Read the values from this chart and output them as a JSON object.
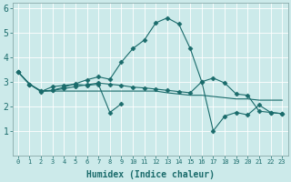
{
  "xlabel": "Humidex (Indice chaleur)",
  "background_color": "#cceaea",
  "line_color": "#1a6b6b",
  "xlim": [
    -0.5,
    23.5
  ],
  "ylim": [
    0,
    6.2
  ],
  "yticks": [
    1,
    2,
    3,
    4,
    5,
    6
  ],
  "xtick_labels": [
    "0",
    "1",
    "2",
    "3",
    "4",
    "5",
    "6",
    "7",
    "8",
    "9",
    "10",
    "11",
    "12",
    "13",
    "14",
    "15",
    "16",
    "17",
    "18",
    "19",
    "20",
    "21",
    "22",
    "23"
  ],
  "lines": [
    {
      "x": [
        0,
        1,
        2,
        3,
        4,
        5,
        6,
        7,
        8,
        9
      ],
      "y": [
        3.4,
        2.9,
        2.6,
        2.8,
        2.85,
        2.9,
        2.85,
        2.9,
        1.75,
        2.1
      ],
      "style": "-",
      "marker": "D",
      "markersize": 2.5
    },
    {
      "x": [
        0,
        1,
        2,
        3,
        4,
        5,
        6,
        7,
        8,
        9,
        10,
        11,
        12,
        13,
        14,
        15,
        16,
        17,
        18,
        19,
        20,
        21,
        22,
        23
      ],
      "y": [
        3.4,
        2.9,
        2.62,
        2.62,
        2.62,
        2.62,
        2.62,
        2.62,
        2.62,
        2.62,
        2.62,
        2.62,
        2.62,
        2.55,
        2.5,
        2.45,
        2.45,
        2.4,
        2.35,
        2.3,
        2.3,
        2.25,
        2.25,
        2.25
      ],
      "style": "-",
      "marker": null,
      "markersize": 0
    },
    {
      "x": [
        0,
        1,
        2,
        3,
        4,
        5,
        6,
        7,
        8,
        9,
        10,
        11,
        12,
        13,
        14,
        15,
        16,
        17,
        18,
        19,
        20,
        21,
        22,
        23
      ],
      "y": [
        3.4,
        2.9,
        2.62,
        2.65,
        2.72,
        2.8,
        2.88,
        2.95,
        2.9,
        2.85,
        2.78,
        2.75,
        2.7,
        2.65,
        2.6,
        2.55,
        3.0,
        3.15,
        2.95,
        2.5,
        2.45,
        1.8,
        1.75,
        1.7
      ],
      "style": "-",
      "marker": "D",
      "markersize": 2.5
    },
    {
      "x": [
        0,
        1,
        2,
        3,
        4,
        5,
        6,
        7,
        8,
        9,
        10,
        11,
        12,
        13,
        14,
        15,
        16,
        17,
        18,
        19,
        20,
        21,
        22,
        23
      ],
      "y": [
        3.4,
        2.9,
        2.62,
        2.65,
        2.78,
        2.92,
        3.08,
        3.2,
        3.1,
        3.8,
        4.35,
        4.7,
        5.4,
        5.6,
        5.35,
        4.35,
        3.0,
        1.0,
        1.6,
        1.75,
        1.65,
        2.05,
        1.75,
        1.7
      ],
      "style": "-",
      "marker": "D",
      "markersize": 2.5
    }
  ]
}
